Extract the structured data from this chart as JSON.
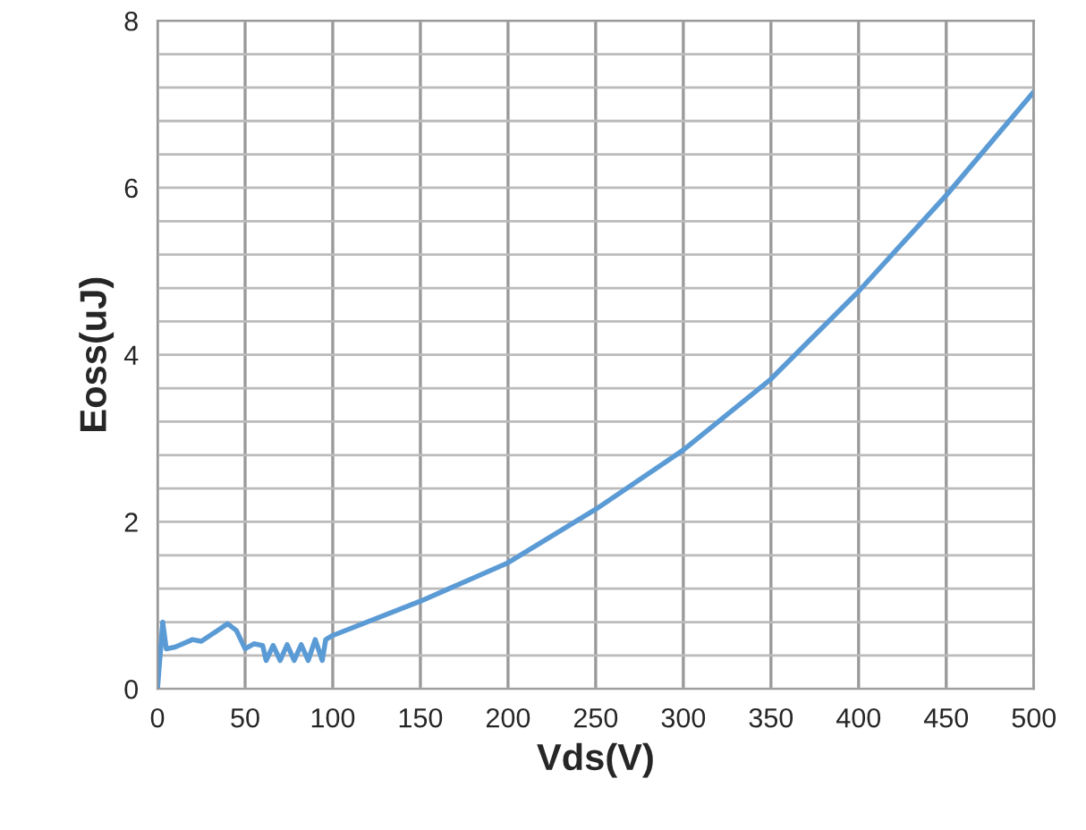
{
  "chart_data": {
    "type": "line",
    "xlabel": "Vds(V)",
    "ylabel": "Eoss(uJ)",
    "x": [
      0,
      3,
      5,
      10,
      20,
      25,
      35,
      40,
      45,
      50,
      55,
      60,
      62,
      66,
      70,
      74,
      78,
      82,
      86,
      90,
      94,
      96,
      100,
      150,
      200,
      250,
      300,
      350,
      400,
      450,
      500
    ],
    "series": [
      {
        "color": "#5b9bd5",
        "values": [
          0,
          0.8,
          0.48,
          0.5,
          0.59,
          0.57,
          0.71,
          0.78,
          0.7,
          0.48,
          0.54,
          0.52,
          0.34,
          0.52,
          0.34,
          0.53,
          0.34,
          0.53,
          0.34,
          0.59,
          0.34,
          0.59,
          0.64,
          1.05,
          1.51,
          2.15,
          2.86,
          3.71,
          4.76,
          5.91,
          7.15
        ]
      }
    ],
    "xlim": [
      0,
      500
    ],
    "xticks": [
      0,
      50,
      100,
      150,
      200,
      250,
      300,
      350,
      400,
      450,
      500
    ],
    "ylim": [
      0,
      8
    ],
    "yticks": [
      0,
      {
        "value": 0.4,
        "label": null
      },
      {
        "value": 0.8,
        "label": null
      },
      {
        "value": 1.2,
        "label": null
      },
      {
        "value": 1.6,
        "label": null
      },
      2,
      {
        "value": 2.4,
        "label": null
      },
      {
        "value": 2.8,
        "label": null
      },
      {
        "value": 3.2,
        "label": null
      },
      {
        "value": 3.6,
        "label": null
      },
      4,
      {
        "value": 4.4,
        "label": null
      },
      {
        "value": 4.8,
        "label": null
      },
      {
        "value": 5.2,
        "label": null
      },
      {
        "value": 5.6,
        "label": null
      },
      6,
      {
        "value": 6.4,
        "label": null
      },
      {
        "value": 6.8,
        "label": null
      },
      {
        "value": 7.2,
        "label": null
      },
      {
        "value": 7.6,
        "label": null
      },
      8
    ],
    "grid": true,
    "marker": "none",
    "line_style": "solid"
  }
}
